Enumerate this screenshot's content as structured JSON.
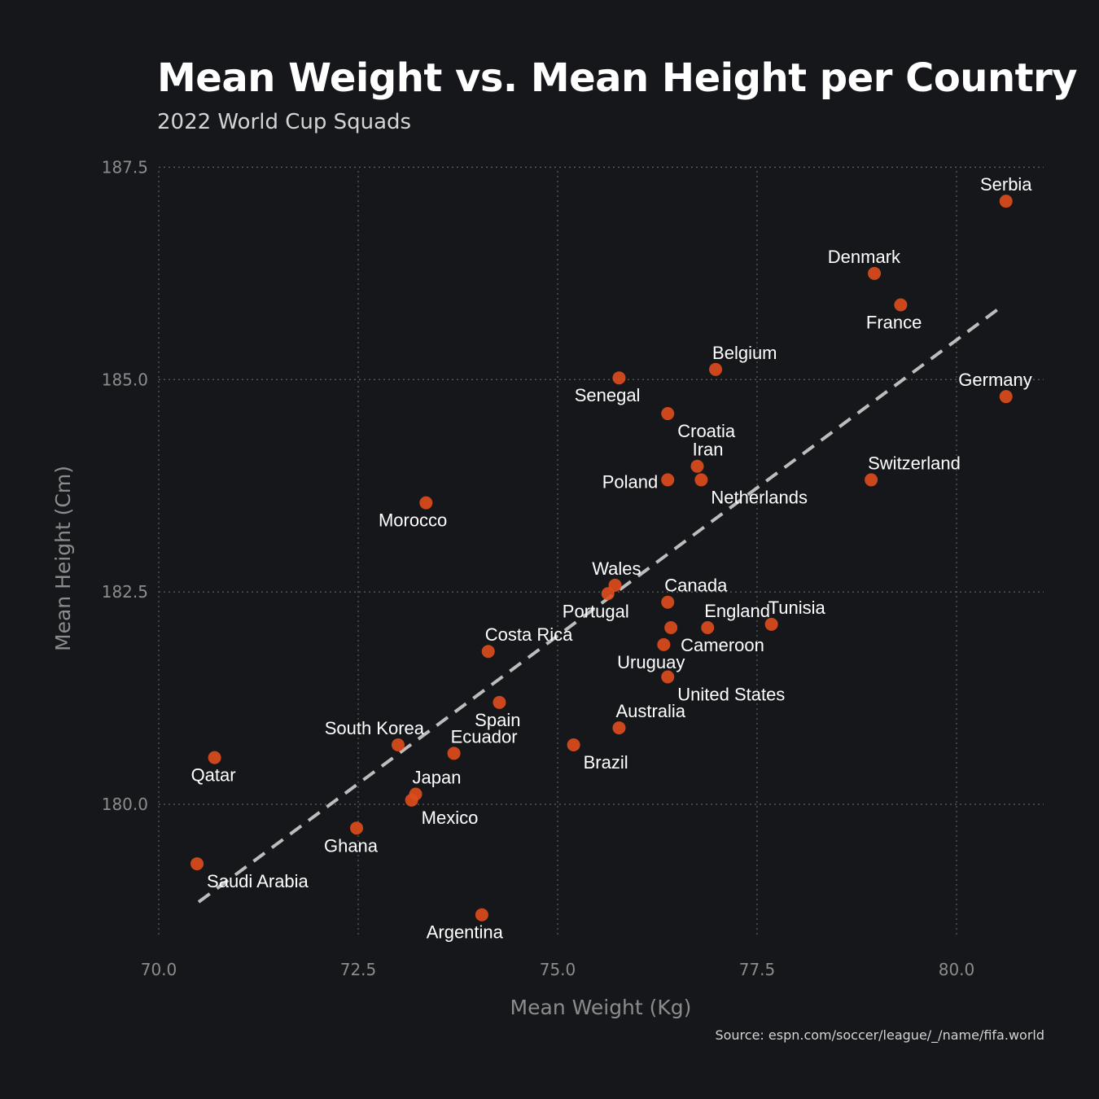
{
  "chart_data": {
    "type": "scatter",
    "title": "Mean Weight vs. Mean Height per Country",
    "subtitle": "2022 World Cup Squads",
    "xlabel": "Mean Weight (Kg)",
    "ylabel": "Mean Height (Cm)",
    "source": "Source: espn.com/soccer/league/_/name/fifa.world",
    "xlim": [
      70.0,
      81.0
    ],
    "ylim": [
      178.4,
      187.6
    ],
    "xticks": [
      {
        "value": 70.0,
        "label": "70.0"
      },
      {
        "value": 72.5,
        "label": "72.5"
      },
      {
        "value": 75.0,
        "label": "75.0"
      },
      {
        "value": 77.5,
        "label": "77.5"
      },
      {
        "value": 80.0,
        "label": "80.0"
      }
    ],
    "yticks": [
      {
        "value": 180.0,
        "label": "180.0"
      },
      {
        "value": 182.5,
        "label": "182.5"
      },
      {
        "value": 185.0,
        "label": "185.0"
      },
      {
        "value": 187.5,
        "label": "187.5"
      }
    ],
    "grid": true,
    "point_color": "#e04d1d",
    "trendline": {
      "x": [
        70.5,
        80.55
      ],
      "y": [
        178.85,
        185.85
      ],
      "color": "#bdbdbd",
      "style": "dashed"
    },
    "points": [
      {
        "name": "Serbia",
        "x": 80.62,
        "y": 187.1,
        "label_pos": "above"
      },
      {
        "name": "Denmark",
        "x": 78.97,
        "y": 186.25,
        "label_pos": "above-left"
      },
      {
        "name": "France",
        "x": 79.3,
        "y": 185.88,
        "label_pos": "below-left"
      },
      {
        "name": "Belgium",
        "x": 76.98,
        "y": 185.12,
        "label_pos": "above-right"
      },
      {
        "name": "Germany",
        "x": 80.62,
        "y": 184.8,
        "label_pos": "above-left"
      },
      {
        "name": "Senegal",
        "x": 75.77,
        "y": 185.02,
        "label_pos": "below-left"
      },
      {
        "name": "Croatia",
        "x": 76.38,
        "y": 184.6,
        "label_pos": "below-right"
      },
      {
        "name": "Iran",
        "x": 76.75,
        "y": 183.98,
        "label_pos": "above-left"
      },
      {
        "name": "Netherlands",
        "x": 76.8,
        "y": 183.82,
        "label_pos": "below-right"
      },
      {
        "name": "Poland",
        "x": 76.38,
        "y": 183.82,
        "label_pos": "left"
      },
      {
        "name": "Switzerland",
        "x": 78.93,
        "y": 183.82,
        "label_pos": "above-right"
      },
      {
        "name": "Morocco",
        "x": 73.35,
        "y": 183.55,
        "label_pos": "below-left"
      },
      {
        "name": "Wales",
        "x": 75.72,
        "y": 182.58,
        "label_pos": "above-left"
      },
      {
        "name": "Portugal",
        "x": 75.63,
        "y": 182.48,
        "label_pos": "below-left"
      },
      {
        "name": "Canada",
        "x": 76.38,
        "y": 182.38,
        "label_pos": "above-right"
      },
      {
        "name": "England",
        "x": 76.88,
        "y": 182.08,
        "label_pos": "above-right"
      },
      {
        "name": "Cameroon",
        "x": 76.42,
        "y": 182.08,
        "label_pos": "below-right"
      },
      {
        "name": "Tunisia",
        "x": 77.68,
        "y": 182.12,
        "label_pos": "above-right"
      },
      {
        "name": "Uruguay",
        "x": 76.33,
        "y": 181.88,
        "label_pos": "below-left"
      },
      {
        "name": "United States",
        "x": 76.38,
        "y": 181.5,
        "label_pos": "below-right"
      },
      {
        "name": "Costa Rica",
        "x": 74.13,
        "y": 181.8,
        "label_pos": "above-right"
      },
      {
        "name": "Spain",
        "x": 74.27,
        "y": 181.2,
        "label_pos": "below-left"
      },
      {
        "name": "Australia",
        "x": 75.77,
        "y": 180.9,
        "label_pos": "above-right"
      },
      {
        "name": "Brazil",
        "x": 75.2,
        "y": 180.7,
        "label_pos": "below-right"
      },
      {
        "name": "South Korea",
        "x": 73.0,
        "y": 180.7,
        "label_pos": "above-left"
      },
      {
        "name": "Ecuador",
        "x": 73.7,
        "y": 180.6,
        "label_pos": "above-right"
      },
      {
        "name": "Qatar",
        "x": 70.7,
        "y": 180.55,
        "label_pos": "below-left"
      },
      {
        "name": "Japan",
        "x": 73.22,
        "y": 180.12,
        "label_pos": "above-right"
      },
      {
        "name": "Mexico",
        "x": 73.17,
        "y": 180.05,
        "label_pos": "below-right"
      },
      {
        "name": "Ghana",
        "x": 72.48,
        "y": 179.72,
        "label_pos": "below-left"
      },
      {
        "name": "Saudi Arabia",
        "x": 70.48,
        "y": 179.3,
        "label_pos": "below-right"
      },
      {
        "name": "Argentina",
        "x": 74.05,
        "y": 178.7,
        "label_pos": "below-left"
      }
    ]
  }
}
